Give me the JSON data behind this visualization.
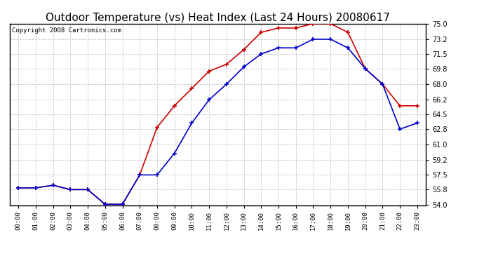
{
  "title": "Outdoor Temperature (vs) Heat Index (Last 24 Hours) 20080617",
  "copyright": "Copyright 2008 Cartronics.com",
  "hours": [
    "00:00",
    "01:00",
    "02:00",
    "03:00",
    "04:00",
    "05:00",
    "06:00",
    "07:00",
    "08:00",
    "09:00",
    "10:00",
    "11:00",
    "12:00",
    "13:00",
    "14:00",
    "15:00",
    "16:00",
    "17:00",
    "18:00",
    "19:00",
    "20:00",
    "21:00",
    "22:00",
    "23:00"
  ],
  "red_temp": [
    56.0,
    56.0,
    56.3,
    55.8,
    55.8,
    54.1,
    54.1,
    57.5,
    63.0,
    65.5,
    67.5,
    69.5,
    70.3,
    72.0,
    74.0,
    74.5,
    74.5,
    75.0,
    75.0,
    74.0,
    69.8,
    68.0,
    65.5,
    65.5
  ],
  "blue_heat": [
    56.0,
    56.0,
    56.3,
    55.8,
    55.8,
    54.1,
    54.1,
    57.5,
    57.5,
    60.0,
    63.5,
    66.2,
    68.0,
    70.0,
    71.5,
    72.2,
    72.2,
    73.2,
    73.2,
    72.2,
    69.8,
    68.0,
    62.8,
    63.5
  ],
  "ylim": [
    54.0,
    75.0
  ],
  "yticks": [
    54.0,
    55.8,
    57.5,
    59.2,
    61.0,
    62.8,
    64.5,
    66.2,
    68.0,
    69.8,
    71.5,
    73.2,
    75.0
  ],
  "red_color": "#cc0000",
  "blue_color": "#0000cc",
  "bg_color": "#ffffff",
  "grid_color": "#c8c8c8",
  "title_fontsize": 11,
  "copyright_fontsize": 6.5
}
